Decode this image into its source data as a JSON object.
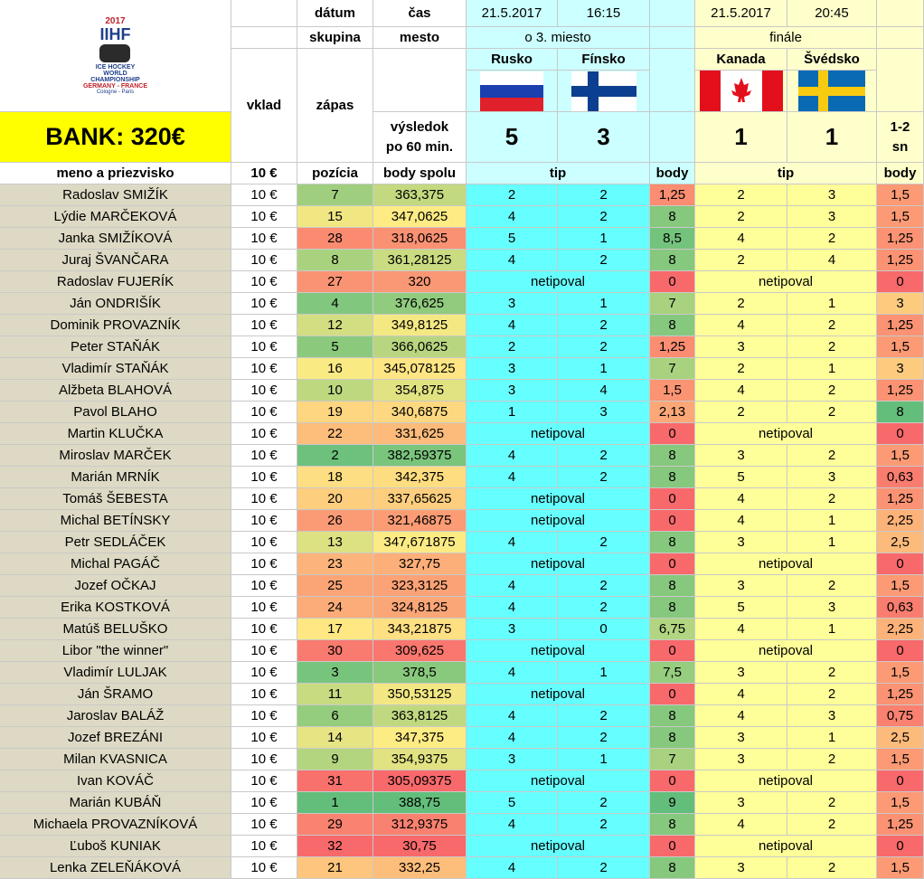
{
  "header": {
    "datum_label": "dátum",
    "cas_label": "čas",
    "skupina_label": "skupina",
    "mesto_label": "mesto",
    "vklad_label": "vklad",
    "zapas_label": "zápas",
    "vysledok_label": "výsledok\npo 60 min.",
    "bank_label": "BANK: 320€",
    "name_col_label": "meno a priezvisko",
    "vklad_value_label": "10 €",
    "pozicia_label": "pozícia",
    "body_spolu_label": "body spolu",
    "logo": {
      "year": "2017",
      "brand": "IIHF",
      "line1": "ICE HOCKEY",
      "line2": "WORLD",
      "line3": "CHAMPIONSHIP",
      "line4": "GERMANY - FRANCE",
      "line5": "Cologne - Paris"
    }
  },
  "matches": [
    {
      "date": "21.5.2017",
      "time": "16:15",
      "group": "o 3. miesto",
      "team1": "Rusko",
      "team2": "Fínsko",
      "score1": "5",
      "score2": "3",
      "extra": "",
      "tip_label": "tip",
      "body_label": "body"
    },
    {
      "date": "21.5.2017",
      "time": "20:45",
      "group": "finále",
      "team1": "Kanada",
      "team2": "Švédsko",
      "score1": "1",
      "score2": "1",
      "extra": "1-2\nsn",
      "tip_label": "tip",
      "body_label": "body"
    }
  ],
  "netipoval_label": "netipoval",
  "rows": [
    {
      "name": "Radoslav SMIŽÍK",
      "vklad": "10 €",
      "pos": 7,
      "total": "363,375",
      "t1": [
        "2",
        "2"
      ],
      "b1": "1,25",
      "t2": [
        "2",
        "3"
      ],
      "b2": "1,5"
    },
    {
      "name": "Lýdie MARČEKOVÁ",
      "vklad": "10 €",
      "pos": 15,
      "total": "347,0625",
      "t1": [
        "4",
        "2"
      ],
      "b1": "8",
      "t2": [
        "2",
        "3"
      ],
      "b2": "1,5"
    },
    {
      "name": "Janka SMIŽÍKOVÁ",
      "vklad": "10 €",
      "pos": 28,
      "total": "318,0625",
      "t1": [
        "5",
        "1"
      ],
      "b1": "8,5",
      "t2": [
        "4",
        "2"
      ],
      "b2": "1,25"
    },
    {
      "name": "Juraj ŠVANČARA",
      "vklad": "10 €",
      "pos": 8,
      "total": "361,28125",
      "t1": [
        "4",
        "2"
      ],
      "b1": "8",
      "t2": [
        "2",
        "4"
      ],
      "b2": "1,25"
    },
    {
      "name": "Radoslav FUJERÍK",
      "vklad": "10 €",
      "pos": 27,
      "total": "320",
      "t1": null,
      "b1": "0",
      "t2": null,
      "b2": "0"
    },
    {
      "name": "Ján ONDRIŠÍK",
      "vklad": "10 €",
      "pos": 4,
      "total": "376,625",
      "t1": [
        "3",
        "1"
      ],
      "b1": "7",
      "t2": [
        "2",
        "1"
      ],
      "b2": "3"
    },
    {
      "name": "Dominik PROVAZNÍK",
      "vklad": "10 €",
      "pos": 12,
      "total": "349,8125",
      "t1": [
        "4",
        "2"
      ],
      "b1": "8",
      "t2": [
        "4",
        "2"
      ],
      "b2": "1,25"
    },
    {
      "name": "Peter STAŇÁK",
      "vklad": "10 €",
      "pos": 5,
      "total": "366,0625",
      "t1": [
        "2",
        "2"
      ],
      "b1": "1,25",
      "t2": [
        "3",
        "2"
      ],
      "b2": "1,5"
    },
    {
      "name": "Vladimír STAŇÁK",
      "vklad": "10 €",
      "pos": 16,
      "total": "345,078125",
      "t1": [
        "3",
        "1"
      ],
      "b1": "7",
      "t2": [
        "2",
        "1"
      ],
      "b2": "3"
    },
    {
      "name": "Alžbeta BLAHOVÁ",
      "vklad": "10 €",
      "pos": 10,
      "total": "354,875",
      "t1": [
        "3",
        "4"
      ],
      "b1": "1,5",
      "t2": [
        "4",
        "2"
      ],
      "b2": "1,25"
    },
    {
      "name": "Pavol BLAHO",
      "vklad": "10 €",
      "pos": 19,
      "total": "340,6875",
      "t1": [
        "1",
        "3"
      ],
      "b1": "2,13",
      "t2": [
        "2",
        "2"
      ],
      "b2": "8"
    },
    {
      "name": "Martin KLUČKA",
      "vklad": "10 €",
      "pos": 22,
      "total": "331,625",
      "t1": null,
      "b1": "0",
      "t2": null,
      "b2": "0"
    },
    {
      "name": "Miroslav MARČEK",
      "vklad": "10 €",
      "pos": 2,
      "total": "382,59375",
      "t1": [
        "4",
        "2"
      ],
      "b1": "8",
      "t2": [
        "3",
        "2"
      ],
      "b2": "1,5"
    },
    {
      "name": "Marián MRNÍK",
      "vklad": "10 €",
      "pos": 18,
      "total": "342,375",
      "t1": [
        "4",
        "2"
      ],
      "b1": "8",
      "t2": [
        "5",
        "3"
      ],
      "b2": "0,63"
    },
    {
      "name": "Tomáš ŠEBESTA",
      "vklad": "10 €",
      "pos": 20,
      "total": "337,65625",
      "t1": null,
      "b1": "0",
      "t2": [
        "4",
        "2"
      ],
      "b2": "1,25"
    },
    {
      "name": "Michal BETÍNSKY",
      "vklad": "10 €",
      "pos": 26,
      "total": "321,46875",
      "t1": null,
      "b1": "0",
      "t2": [
        "4",
        "1"
      ],
      "b2": "2,25"
    },
    {
      "name": "Petr SEDLÁČEK",
      "vklad": "10 €",
      "pos": 13,
      "total": "347,671875",
      "t1": [
        "4",
        "2"
      ],
      "b1": "8",
      "t2": [
        "3",
        "1"
      ],
      "b2": "2,5"
    },
    {
      "name": "Michal PAGÁČ",
      "vklad": "10 €",
      "pos": 23,
      "total": "327,75",
      "t1": null,
      "b1": "0",
      "t2": null,
      "b2": "0"
    },
    {
      "name": "Jozef OČKAJ",
      "vklad": "10 €",
      "pos": 25,
      "total": "323,3125",
      "t1": [
        "4",
        "2"
      ],
      "b1": "8",
      "t2": [
        "3",
        "2"
      ],
      "b2": "1,5"
    },
    {
      "name": "Erika KOSTKOVÁ",
      "vklad": "10 €",
      "pos": 24,
      "total": "324,8125",
      "t1": [
        "4",
        "2"
      ],
      "b1": "8",
      "t2": [
        "5",
        "3"
      ],
      "b2": "0,63"
    },
    {
      "name": "Matúš BELUŠKO",
      "vklad": "10 €",
      "pos": 17,
      "total": "343,21875",
      "t1": [
        "3",
        "0"
      ],
      "b1": "6,75",
      "t2": [
        "4",
        "1"
      ],
      "b2": "2,25"
    },
    {
      "name": "Libor \"the winner\"",
      "vklad": "10 €",
      "pos": 30,
      "total": "309,625",
      "t1": null,
      "b1": "0",
      "t2": null,
      "b2": "0"
    },
    {
      "name": "Vladimír LULJAK",
      "vklad": "10 €",
      "pos": 3,
      "total": "378,5",
      "t1": [
        "4",
        "1"
      ],
      "b1": "7,5",
      "t2": [
        "3",
        "2"
      ],
      "b2": "1,5"
    },
    {
      "name": "Ján ŠRAMO",
      "vklad": "10 €",
      "pos": 11,
      "total": "350,53125",
      "t1": null,
      "b1": "0",
      "t2": [
        "4",
        "2"
      ],
      "b2": "1,25"
    },
    {
      "name": "Jaroslav BALÁŽ",
      "vklad": "10 €",
      "pos": 6,
      "total": "363,8125",
      "t1": [
        "4",
        "2"
      ],
      "b1": "8",
      "t2": [
        "4",
        "3"
      ],
      "b2": "0,75"
    },
    {
      "name": "Jozef BREZÁNI",
      "vklad": "10 €",
      "pos": 14,
      "total": "347,375",
      "t1": [
        "4",
        "2"
      ],
      "b1": "8",
      "t2": [
        "3",
        "1"
      ],
      "b2": "2,5"
    },
    {
      "name": "Milan KVASNICA",
      "vklad": "10 €",
      "pos": 9,
      "total": "354,9375",
      "t1": [
        "3",
        "1"
      ],
      "b1": "7",
      "t2": [
        "3",
        "2"
      ],
      "b2": "1,5"
    },
    {
      "name": "Ivan KOVÁČ",
      "vklad": "10 €",
      "pos": 31,
      "total": "305,09375",
      "t1": null,
      "b1": "0",
      "t2": null,
      "b2": "0"
    },
    {
      "name": "Marián KUBÁŇ",
      "vklad": "10 €",
      "pos": 1,
      "total": "388,75",
      "t1": [
        "5",
        "2"
      ],
      "b1": "9",
      "t2": [
        "3",
        "2"
      ],
      "b2": "1,5"
    },
    {
      "name": "Michaela PROVAZNÍKOVÁ",
      "vklad": "10 €",
      "pos": 29,
      "total": "312,9375",
      "t1": [
        "4",
        "2"
      ],
      "b1": "8",
      "t2": [
        "4",
        "2"
      ],
      "b2": "1,25"
    },
    {
      "name": "Ľuboš KUNIAK",
      "vklad": "10 €",
      "pos": 32,
      "total": "30,75",
      "t1": null,
      "b1": "0",
      "t2": null,
      "b2": "0"
    },
    {
      "name": "Lenka ZELEŇÁKOVÁ",
      "vklad": "10 €",
      "pos": 21,
      "total": "332,25",
      "t1": [
        "4",
        "2"
      ],
      "b1": "8",
      "t2": [
        "3",
        "2"
      ],
      "b2": "1,5"
    }
  ],
  "colors": {
    "name_bg": "#ddd9c4",
    "bank_bg": "#ffff00",
    "match1_bg": "#ccffff",
    "match1_tip_bg": "#66ffff",
    "match2_bg": "#ffffcc",
    "match2_tip_bg": "#ffff99",
    "good": "#63be7b",
    "mid": "#ffeb84",
    "bad": "#f8696b"
  }
}
